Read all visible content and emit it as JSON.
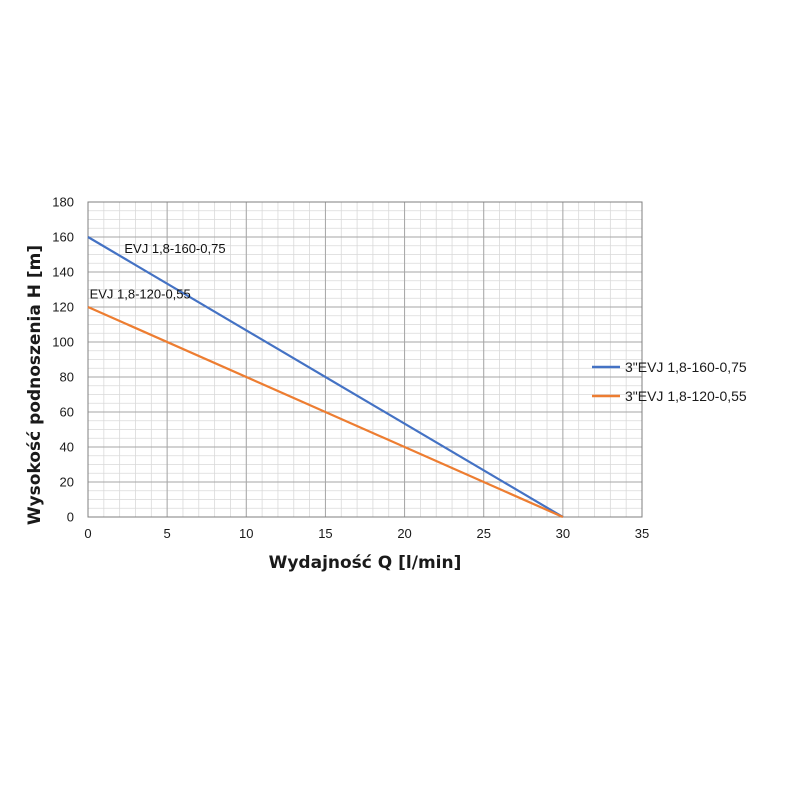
{
  "chart_data": {
    "type": "line",
    "title": "",
    "xlabel": "Wydajność Q [l/min]",
    "ylabel": "Wysokość podnoszenia H [m]",
    "xlim": [
      0,
      35
    ],
    "ylim": [
      0,
      180
    ],
    "x_major_ticks": [
      0,
      5,
      10,
      15,
      20,
      25,
      30,
      35
    ],
    "y_major_ticks": [
      0,
      20,
      40,
      60,
      80,
      100,
      120,
      140,
      160,
      180
    ],
    "x_minor_step": 1,
    "y_minor_step": 5,
    "grid": true,
    "legend_position": "right",
    "series": [
      {
        "name": "3\"EVJ 1,8-160-0,75",
        "color": "#4472c4",
        "x": [
          0,
          30
        ],
        "y": [
          160,
          0
        ]
      },
      {
        "name": "3\"EVJ 1,8-120-0,55",
        "color": "#ed7d31",
        "x": [
          0,
          30
        ],
        "y": [
          120,
          0
        ]
      }
    ],
    "annotations": [
      {
        "text": "EVJ 1,8-160-0,75",
        "x": 2.3,
        "y": 151
      },
      {
        "text": "EVJ 1,8-120-0,55",
        "x": 0.1,
        "y": 125
      }
    ]
  }
}
